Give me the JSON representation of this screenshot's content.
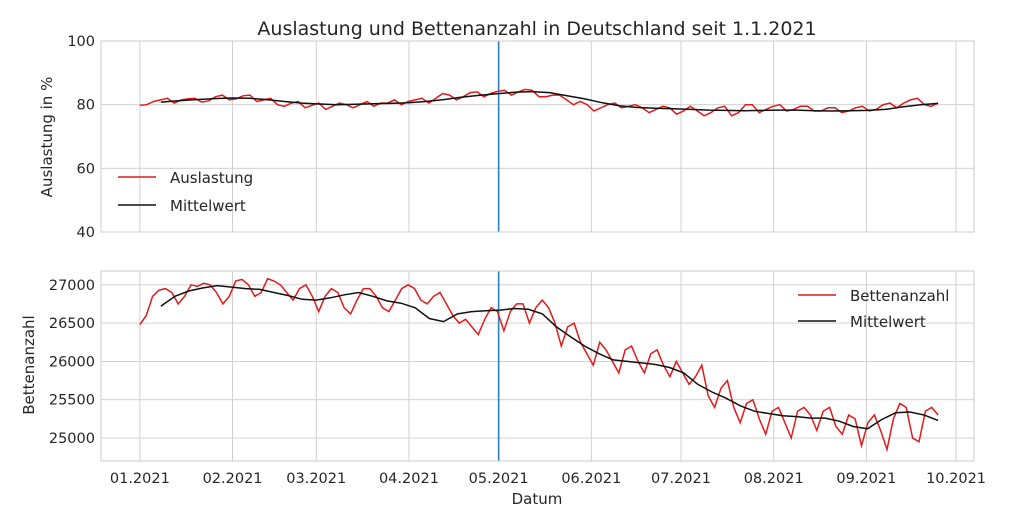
{
  "title": "Auslastung und Bettenanzahl in Deutschland seit 1.1.2021",
  "xlabel": "Datum",
  "colors": {
    "series": "#e31a1c",
    "mean": "#111111",
    "marker": "#2f7fb8"
  },
  "chart_data": [
    {
      "type": "line",
      "ylabel": "Auslastung in %",
      "ylim": [
        40,
        100
      ],
      "yticks": [
        40,
        60,
        80,
        100
      ],
      "xlim": [
        "2020-12-19",
        "2021-10-07"
      ],
      "xticks": [
        {
          "date": "2021-01-01",
          "label": "01.2021"
        },
        {
          "date": "2021-02-01",
          "label": "02.2021"
        },
        {
          "date": "2021-03-01",
          "label": "03.2021"
        },
        {
          "date": "2021-04-01",
          "label": "04.2021"
        },
        {
          "date": "2021-05-01",
          "label": "05.2021"
        },
        {
          "date": "2021-06-01",
          "label": "06.2021"
        },
        {
          "date": "2021-07-01",
          "label": "07.2021"
        },
        {
          "date": "2021-08-01",
          "label": "08.2021"
        },
        {
          "date": "2021-09-01",
          "label": "09.2021"
        },
        {
          "date": "2021-10-01",
          "label": "10.2021"
        }
      ],
      "vline": "2021-05-01",
      "grid": true,
      "legend_position": "lower-left",
      "series": [
        {
          "name": "Auslastung",
          "color": "#e31a1c",
          "start": "2021-01-01",
          "end": "2021-09-25",
          "values": [
            79.8,
            80.0,
            81.0,
            81.5,
            82.0,
            80.5,
            81.5,
            81.8,
            82.0,
            80.8,
            81.2,
            82.5,
            83.0,
            81.5,
            81.8,
            82.8,
            83.0,
            81.0,
            81.5,
            82.0,
            80.0,
            79.5,
            80.5,
            81.0,
            79.0,
            79.8,
            80.5,
            78.5,
            79.5,
            80.5,
            80.0,
            79.0,
            80.0,
            81.0,
            79.5,
            80.5,
            80.5,
            81.5,
            80.0,
            81.0,
            81.5,
            82.0,
            80.5,
            82.0,
            83.5,
            83.0,
            81.5,
            82.5,
            83.8,
            84.0,
            82.5,
            83.5,
            84.2,
            84.5,
            83.0,
            84.0,
            84.8,
            84.5,
            82.5,
            82.5,
            83.0,
            83.0,
            81.5,
            80.0,
            81.0,
            80.0,
            78.0,
            79.0,
            80.0,
            80.5,
            79.0,
            79.5,
            80.0,
            79.0,
            77.5,
            78.5,
            79.5,
            79.0,
            77.0,
            78.0,
            79.5,
            78.0,
            76.5,
            77.5,
            79.0,
            79.5,
            76.5,
            77.5,
            80.0,
            80.0,
            77.5,
            78.5,
            79.5,
            80.0,
            78.0,
            78.5,
            79.5,
            79.5,
            78.0,
            78.0,
            79.0,
            79.0,
            77.5,
            78.0,
            79.0,
            79.5,
            78.0,
            78.5,
            80.0,
            80.5,
            79.0,
            80.5,
            81.5,
            82.0,
            80.0,
            79.5,
            80.5
          ]
        },
        {
          "name": "Mittelwert",
          "color": "#111111",
          "start": "2021-01-08",
          "end": "2021-09-25",
          "values": [
            80.8,
            81.2,
            81.6,
            81.9,
            82.1,
            82.0,
            81.6,
            81.0,
            80.5,
            80.2,
            80.0,
            80.1,
            80.3,
            80.4,
            80.6,
            81.0,
            81.6,
            82.3,
            82.9,
            83.4,
            83.9,
            84.1,
            83.8,
            82.8,
            81.8,
            80.6,
            79.6,
            79.1,
            78.9,
            78.7,
            78.5,
            78.3,
            78.2,
            78.1,
            78.2,
            78.3,
            78.3,
            78.1,
            78.0,
            78.1,
            78.2,
            78.5,
            79.3,
            80.0,
            80.4
          ]
        }
      ]
    },
    {
      "type": "line",
      "ylabel": "Bettenanzahl",
      "ylim": [
        24700,
        27180
      ],
      "yticks": [
        25000,
        25500,
        26000,
        26500,
        27000
      ],
      "xlim": [
        "2020-12-19",
        "2021-10-07"
      ],
      "vline": "2021-05-01",
      "grid": true,
      "legend_position": "upper-right",
      "series": [
        {
          "name": "Bettenanzahl",
          "color": "#e31a1c",
          "start": "2021-01-01",
          "end": "2021-09-25",
          "values": [
            26480,
            26600,
            26850,
            26930,
            26950,
            26900,
            26750,
            26850,
            27000,
            26980,
            27020,
            27000,
            26900,
            26750,
            26850,
            27050,
            27070,
            27000,
            26850,
            26900,
            27080,
            27050,
            27000,
            26900,
            26800,
            26950,
            27000,
            26850,
            26650,
            26850,
            26950,
            26900,
            26700,
            26620,
            26800,
            26950,
            26950,
            26850,
            26700,
            26650,
            26800,
            26950,
            27000,
            26950,
            26800,
            26750,
            26850,
            26900,
            26750,
            26600,
            26500,
            26550,
            26450,
            26350,
            26550,
            26700,
            26650,
            26400,
            26650,
            26750,
            26750,
            26500,
            26700,
            26800,
            26700,
            26500,
            26200,
            26450,
            26500,
            26250,
            26100,
            25950,
            26250,
            26150,
            26000,
            25850,
            26150,
            26200,
            26000,
            25850,
            26100,
            26150,
            25950,
            25800,
            26000,
            25850,
            25700,
            25800,
            25950,
            25550,
            25400,
            25650,
            25750,
            25400,
            25200,
            25450,
            25500,
            25250,
            25050,
            25350,
            25400,
            25200,
            25000,
            25350,
            25400,
            25300,
            25100,
            25350,
            25400,
            25150,
            25050,
            25300,
            25250,
            24900,
            25200,
            25300,
            25100,
            24850,
            25250,
            25450,
            25400,
            25000,
            24950,
            25350,
            25400,
            25300
          ]
        },
        {
          "name": "Mittelwert",
          "color": "#111111",
          "start": "2021-01-08",
          "end": "2021-09-25",
          "values": [
            26720,
            26850,
            26920,
            26960,
            26990,
            26970,
            26950,
            26940,
            26900,
            26860,
            26810,
            26800,
            26830,
            26870,
            26900,
            26850,
            26790,
            26760,
            26700,
            26560,
            26520,
            26620,
            26650,
            26660,
            26670,
            26690,
            26680,
            26620,
            26450,
            26320,
            26200,
            26100,
            26020,
            26000,
            25980,
            25960,
            25920,
            25850,
            25700,
            25600,
            25520,
            25420,
            25350,
            25320,
            25290,
            25280,
            25260,
            25260,
            25220,
            25150,
            25120,
            25240,
            25330,
            25340,
            25300,
            25230
          ]
        }
      ]
    }
  ]
}
